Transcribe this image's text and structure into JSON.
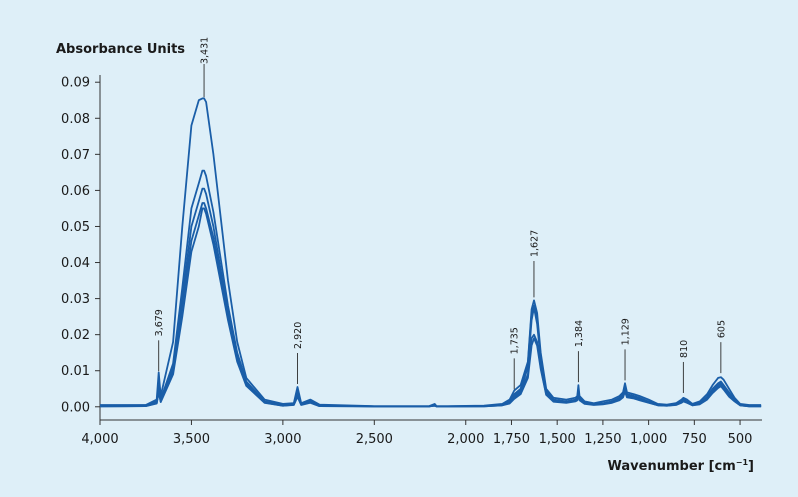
{
  "chart_data": {
    "type": "line",
    "ylabel": "Absorbance Units",
    "xlabel_main": "Wavenumber [cm",
    "xlabel_sup": "−1",
    "xlabel_close": "]",
    "xlim": [
      4000,
      380
    ],
    "ylim": [
      -0.002,
      0.092
    ],
    "x_reversed": true,
    "grid": false,
    "line_color": "#1a5ea8",
    "x_ticks": [
      4000,
      3500,
      3000,
      2500,
      2000,
      1750,
      1500,
      1250,
      1000,
      750,
      500
    ],
    "x_tick_labels": [
      "4,000",
      "3,500",
      "3,000",
      "2,500",
      "2,000",
      "1,750",
      "1,500",
      "1,250",
      "1,000",
      "750",
      "500"
    ],
    "y_ticks": [
      0,
      0.01,
      0.02,
      0.03,
      0.04,
      0.05,
      0.06,
      0.07,
      0.08,
      0.09
    ],
    "y_tick_labels": [
      "0.00",
      "0.01",
      "0.02",
      "0.03",
      "0.04",
      "0.05",
      "0.06",
      "0.07",
      "0.08",
      "0.09"
    ],
    "peak_annotations": [
      {
        "x": 3679,
        "label": "3,679",
        "y": 0.009
      },
      {
        "x": 3431,
        "label": "3,431",
        "y": 0.085
      },
      {
        "x": 2920,
        "label": "2,920",
        "y": 0.0055
      },
      {
        "x": 1735,
        "label": "1,735",
        "y": 0.004
      },
      {
        "x": 1627,
        "label": "1,627",
        "y": 0.0295
      },
      {
        "x": 1384,
        "label": "1,384",
        "y": 0.006
      },
      {
        "x": 1129,
        "label": "1,129",
        "y": 0.0065
      },
      {
        "x": 810,
        "label": "810",
        "y": 0.003
      },
      {
        "x": 605,
        "label": "605",
        "y": 0.0085
      }
    ],
    "series": [
      {
        "x": [
          4000,
          3750,
          3690,
          3679,
          3668,
          3600,
          3550,
          3500,
          3460,
          3440,
          3431,
          3420,
          3380,
          3300,
          3250,
          3200,
          3100,
          3000,
          2940,
          2920,
          2900,
          2850,
          2800,
          2500,
          2200,
          2170,
          2160,
          2100,
          1900,
          1800,
          1760,
          1735,
          1700,
          1660,
          1640,
          1627,
          1610,
          1590,
          1560,
          1520,
          1450,
          1400,
          1390,
          1384,
          1378,
          1350,
          1300,
          1250,
          1200,
          1160,
          1140,
          1129,
          1118,
          1080,
          1050,
          1000,
          950,
          900,
          850,
          820,
          810,
          790,
          760,
          720,
          680,
          650,
          620,
          605,
          590,
          560,
          530,
          500,
          450,
          400,
          385
        ],
        "y": [
          0.0005,
          0.0005,
          0.002,
          0.0095,
          0.003,
          0.018,
          0.05,
          0.078,
          0.085,
          0.0855,
          0.0855,
          0.0845,
          0.07,
          0.035,
          0.018,
          0.008,
          0.002,
          0.0008,
          0.001,
          0.0055,
          0.001,
          0.002,
          0.0006,
          0.0002,
          0.0002,
          0.0008,
          0.0002,
          0.0002,
          0.0003,
          0.0008,
          0.002,
          0.0045,
          0.006,
          0.0125,
          0.027,
          0.0295,
          0.026,
          0.015,
          0.005,
          0.0025,
          0.002,
          0.0025,
          0.003,
          0.006,
          0.003,
          0.0015,
          0.001,
          0.0015,
          0.002,
          0.003,
          0.004,
          0.0065,
          0.004,
          0.0035,
          0.003,
          0.002,
          0.0008,
          0.0006,
          0.001,
          0.002,
          0.0025,
          0.002,
          0.0008,
          0.0015,
          0.0035,
          0.006,
          0.008,
          0.0082,
          0.0075,
          0.005,
          0.0025,
          0.0008,
          0.0005,
          0.0005,
          0.0005
        ]
      },
      {
        "x": [
          4000,
          3750,
          3690,
          3679,
          3668,
          3600,
          3550,
          3500,
          3460,
          3440,
          3431,
          3420,
          3380,
          3300,
          3250,
          3200,
          3100,
          3000,
          2940,
          2920,
          2900,
          2850,
          2800,
          2500,
          2200,
          2170,
          2160,
          2100,
          1900,
          1800,
          1760,
          1735,
          1700,
          1660,
          1640,
          1627,
          1610,
          1590,
          1560,
          1520,
          1450,
          1400,
          1390,
          1384,
          1378,
          1350,
          1300,
          1250,
          1200,
          1160,
          1140,
          1129,
          1118,
          1080,
          1050,
          1000,
          950,
          900,
          850,
          820,
          810,
          790,
          760,
          720,
          680,
          650,
          620,
          605,
          590,
          560,
          530,
          500,
          450,
          400,
          385
        ],
        "y": [
          0.0003,
          0.0004,
          0.0015,
          0.006,
          0.002,
          0.012,
          0.033,
          0.055,
          0.062,
          0.0655,
          0.0655,
          0.064,
          0.054,
          0.028,
          0.015,
          0.007,
          0.0015,
          0.0005,
          0.0008,
          0.004,
          0.0008,
          0.0015,
          0.0004,
          0.0001,
          0.0001,
          0.0005,
          0.0001,
          0.0001,
          0.0002,
          0.0006,
          0.0015,
          0.0035,
          0.005,
          0.012,
          0.026,
          0.028,
          0.024,
          0.014,
          0.0045,
          0.002,
          0.0015,
          0.002,
          0.0025,
          0.005,
          0.0025,
          0.0012,
          0.0008,
          0.001,
          0.0015,
          0.0025,
          0.0035,
          0.0055,
          0.0035,
          0.003,
          0.0025,
          0.0015,
          0.0006,
          0.0005,
          0.0008,
          0.0015,
          0.002,
          0.0015,
          0.0006,
          0.001,
          0.0028,
          0.005,
          0.0065,
          0.007,
          0.006,
          0.004,
          0.002,
          0.0006,
          0.0003,
          0.0003,
          0.0003
        ]
      },
      {
        "x": [
          4000,
          3750,
          3690,
          3679,
          3668,
          3600,
          3550,
          3500,
          3460,
          3440,
          3431,
          3420,
          3380,
          3300,
          3250,
          3200,
          3100,
          3000,
          2940,
          2920,
          2900,
          2850,
          2800,
          2500,
          2200,
          2170,
          2160,
          2100,
          1900,
          1800,
          1760,
          1735,
          1700,
          1660,
          1640,
          1627,
          1610,
          1590,
          1560,
          1520,
          1450,
          1400,
          1390,
          1384,
          1378,
          1350,
          1300,
          1250,
          1200,
          1160,
          1140,
          1129,
          1118,
          1080,
          1050,
          1000,
          950,
          900,
          850,
          820,
          810,
          790,
          760,
          720,
          680,
          650,
          620,
          605,
          590,
          560,
          530,
          500,
          450,
          400,
          385
        ],
        "y": [
          0.0002,
          0.0003,
          0.0012,
          0.005,
          0.0018,
          0.011,
          0.03,
          0.05,
          0.057,
          0.0605,
          0.0605,
          0.059,
          0.05,
          0.026,
          0.014,
          0.0065,
          0.0013,
          0.0004,
          0.0007,
          0.0035,
          0.0007,
          0.0013,
          0.0003,
          0.0001,
          0.0001,
          0.0004,
          0.0001,
          0.0001,
          0.0002,
          0.0005,
          0.0012,
          0.003,
          0.0045,
          0.011,
          0.024,
          0.0275,
          0.023,
          0.013,
          0.004,
          0.0018,
          0.0013,
          0.0018,
          0.0022,
          0.0045,
          0.0022,
          0.001,
          0.0007,
          0.0009,
          0.0013,
          0.0022,
          0.003,
          0.005,
          0.003,
          0.0027,
          0.0022,
          0.0013,
          0.0005,
          0.0004,
          0.0007,
          0.0013,
          0.0018,
          0.0013,
          0.0005,
          0.0009,
          0.0025,
          0.0045,
          0.006,
          0.0065,
          0.0055,
          0.0035,
          0.0018,
          0.0005,
          0.0002,
          0.0002,
          0.0002
        ]
      },
      {
        "x": [
          4000,
          3750,
          3690,
          3679,
          3668,
          3600,
          3550,
          3500,
          3460,
          3440,
          3431,
          3420,
          3380,
          3300,
          3250,
          3200,
          3100,
          3000,
          2940,
          2920,
          2900,
          2850,
          2800,
          2500,
          2200,
          2170,
          2160,
          2100,
          1900,
          1800,
          1760,
          1735,
          1700,
          1660,
          1640,
          1627,
          1610,
          1590,
          1560,
          1520,
          1450,
          1400,
          1390,
          1384,
          1378,
          1350,
          1300,
          1250,
          1200,
          1160,
          1140,
          1129,
          1118,
          1080,
          1050,
          1000,
          950,
          900,
          850,
          820,
          810,
          790,
          760,
          720,
          680,
          650,
          620,
          605,
          590,
          560,
          530,
          500,
          450,
          400,
          385
        ],
        "y": [
          0.0001,
          0.0002,
          0.001,
          0.0045,
          0.0015,
          0.01,
          0.028,
          0.046,
          0.053,
          0.0565,
          0.0565,
          0.055,
          0.047,
          0.025,
          0.013,
          0.006,
          0.0012,
          0.0003,
          0.0006,
          0.003,
          0.0006,
          0.0012,
          0.0002,
          0.0001,
          0.0001,
          0.0003,
          0.0001,
          0.0001,
          0.0001,
          0.0004,
          0.001,
          0.0025,
          0.004,
          0.009,
          0.019,
          0.02,
          0.018,
          0.011,
          0.0035,
          0.0015,
          0.0012,
          0.0016,
          0.002,
          0.004,
          0.002,
          0.0009,
          0.0006,
          0.0008,
          0.0012,
          0.002,
          0.0028,
          0.0045,
          0.0028,
          0.0025,
          0.002,
          0.0012,
          0.0004,
          0.0003,
          0.0006,
          0.0012,
          0.0016,
          0.0012,
          0.0004,
          0.0008,
          0.0022,
          0.004,
          0.0055,
          0.006,
          0.005,
          0.003,
          0.0016,
          0.0004,
          0.0001,
          0.0001,
          0.0001
        ]
      },
      {
        "x": [
          4000,
          3750,
          3690,
          3679,
          3668,
          3600,
          3550,
          3500,
          3460,
          3440,
          3431,
          3420,
          3380,
          3300,
          3250,
          3200,
          3100,
          3000,
          2940,
          2920,
          2900,
          2850,
          2800,
          2500,
          2200,
          2170,
          2160,
          2100,
          1900,
          1800,
          1760,
          1735,
          1700,
          1660,
          1640,
          1627,
          1610,
          1590,
          1560,
          1520,
          1450,
          1400,
          1390,
          1384,
          1378,
          1350,
          1300,
          1250,
          1200,
          1160,
          1140,
          1129,
          1118,
          1080,
          1050,
          1000,
          950,
          900,
          850,
          820,
          810,
          790,
          760,
          720,
          680,
          650,
          620,
          605,
          590,
          560,
          530,
          500,
          450,
          400,
          385
        ],
        "y": [
          0.0001,
          0.0002,
          0.0009,
          0.004,
          0.0013,
          0.009,
          0.025,
          0.043,
          0.05,
          0.055,
          0.055,
          0.0535,
          0.045,
          0.024,
          0.0125,
          0.0058,
          0.0011,
          0.0003,
          0.0005,
          0.0028,
          0.0005,
          0.0011,
          0.0002,
          0.0001,
          0.0001,
          0.0003,
          0.0001,
          0.0001,
          0.0001,
          0.0004,
          0.0009,
          0.0022,
          0.0035,
          0.008,
          0.017,
          0.019,
          0.017,
          0.0105,
          0.0033,
          0.0014,
          0.0011,
          0.0015,
          0.0018,
          0.0038,
          0.0018,
          0.0008,
          0.0005,
          0.0007,
          0.0011,
          0.0018,
          0.0026,
          0.0042,
          0.0026,
          0.0023,
          0.0018,
          0.0011,
          0.0004,
          0.0003,
          0.0005,
          0.0011,
          0.0015,
          0.0011,
          0.0004,
          0.0007,
          0.002,
          0.0038,
          0.0052,
          0.0057,
          0.0048,
          0.0028,
          0.0015,
          0.0004,
          0.0001,
          0.0001,
          0.0001
        ]
      }
    ]
  }
}
